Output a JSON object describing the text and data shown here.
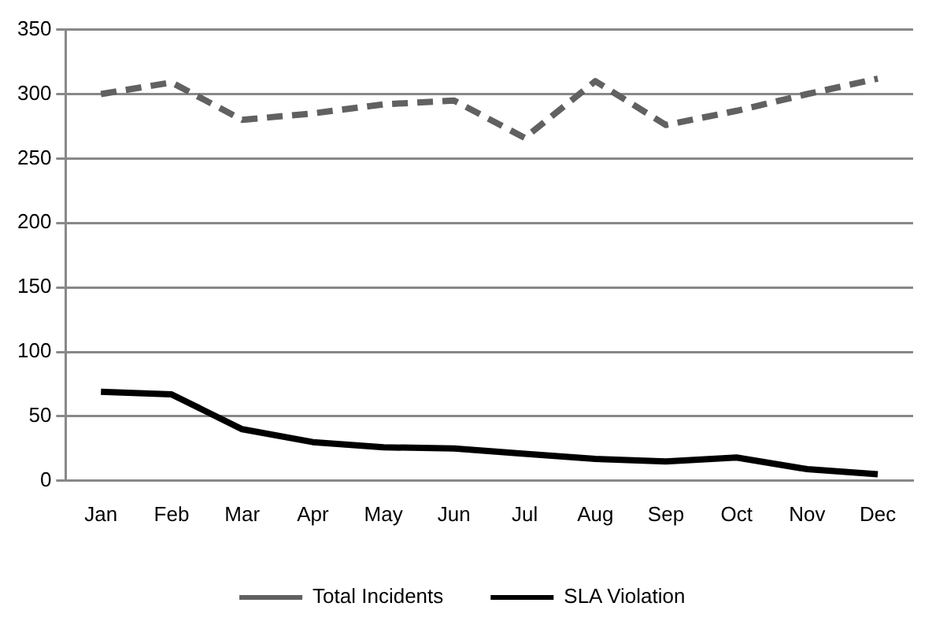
{
  "chart_data": {
    "type": "line",
    "categories": [
      "Jan",
      "Feb",
      "Mar",
      "Apr",
      "May",
      "Jun",
      "Jul",
      "Aug",
      "Sep",
      "Oct",
      "Nov",
      "Dec"
    ],
    "series": [
      {
        "name": "Total Incidents",
        "color": "#616161",
        "line_style": "dashed",
        "values": [
          300,
          309,
          280,
          285,
          292,
          295,
          266,
          310,
          276,
          287,
          300,
          312
        ]
      },
      {
        "name": "SLA Violation",
        "color": "#000000",
        "line_style": "solid",
        "values": [
          69,
          67,
          40,
          30,
          26,
          25,
          21,
          17,
          15,
          18,
          9,
          5
        ]
      }
    ],
    "ylim": [
      0,
      350
    ],
    "yticks": [
      0,
      50,
      100,
      150,
      200,
      250,
      300,
      350
    ],
    "grid": "y",
    "legend": "bottom",
    "marker": "none"
  }
}
